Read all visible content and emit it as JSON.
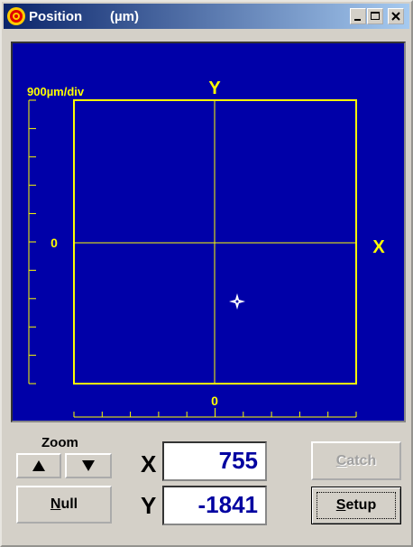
{
  "window": {
    "title": "Position",
    "unit": "(µm)"
  },
  "plot": {
    "scale": "900µm/div",
    "y_axis": "Y",
    "x_axis": "X",
    "y_zero": "0",
    "x_zero": "0"
  },
  "controls": {
    "zoom": "Zoom",
    "null": "Null",
    "catch": "Catch",
    "setup": "Setup",
    "x_label": "X",
    "y_label": "Y",
    "x_value": 755,
    "y_value": -1841
  }
}
